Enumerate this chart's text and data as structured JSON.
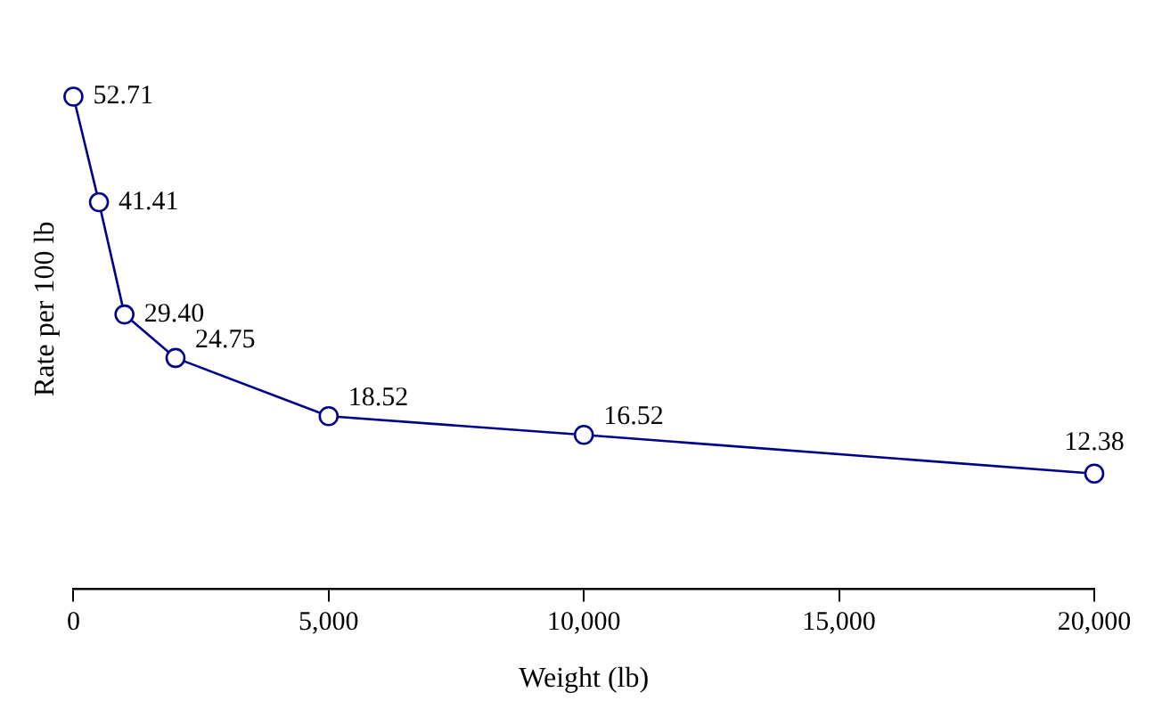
{
  "chart_data": {
    "type": "line",
    "xlabel": "Weight (lb)",
    "ylabel": "Rate per 100 lb",
    "x": [
      0,
      500,
      1000,
      2000,
      5000,
      10000,
      20000
    ],
    "series": [
      {
        "color": "#00008b",
        "values": [
          52.71,
          41.41,
          29.4,
          24.75,
          18.52,
          16.52,
          12.38
        ],
        "value_labels": [
          "52.71",
          "41.41",
          "29.40",
          "24.75",
          "18.52",
          "16.52",
          "12.38"
        ]
      }
    ],
    "xlim": [
      0,
      20000
    ],
    "xticks": [
      0,
      {
        "value": 5000,
        "label": "5,000"
      },
      {
        "value": 10000,
        "label": "10,000"
      },
      {
        "value": 15000,
        "label": "15,000"
      },
      {
        "value": 20000,
        "label": "20,000"
      }
    ],
    "tick_labels": "x",
    "grid": false,
    "legend": false,
    "marker": "circle",
    "line_style": "solid"
  }
}
